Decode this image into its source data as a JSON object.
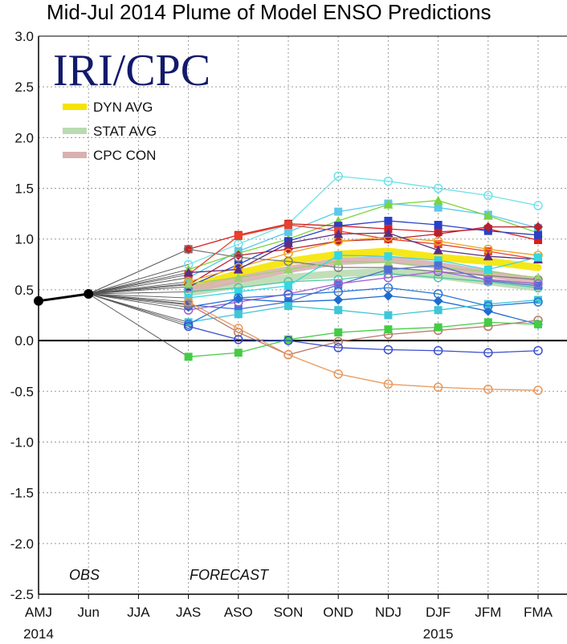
{
  "chart_data": {
    "type": "line",
    "title": "Mid-Jul 2014 Plume of Model ENSO Predictions",
    "brand": "IRI/CPC",
    "categories": [
      "AMJ",
      "Jun",
      "JJA",
      "JAS",
      "ASO",
      "SON",
      "OND",
      "NDJ",
      "DJF",
      "JFM",
      "FMA"
    ],
    "y_tick_labels": [
      "3.0",
      "2.5",
      "2.0",
      "1.5",
      "1.0",
      "0.5",
      "0.0",
      "-0.5",
      "-1.0",
      "-1.5",
      "-2.0",
      "-2.5"
    ],
    "ylim": [
      -2.5,
      3.0
    ],
    "grid": true,
    "legend_placement": "top-left",
    "period_labels": {
      "obs": "OBS",
      "forecast": "FORECAST"
    },
    "year_labels": [
      {
        "text": "2014",
        "category": "AMJ"
      },
      {
        "text": "2015",
        "category": "DJF"
      }
    ],
    "legend": [
      {
        "label": "DYN AVG",
        "color": "#f5e400"
      },
      {
        "label": "STAT AVG",
        "color": "#b9dbb1"
      },
      {
        "label": "CPC CON",
        "color": "#d8b1b1"
      }
    ],
    "observed": {
      "x": [
        "AMJ",
        "Jun"
      ],
      "values": [
        0.39,
        0.46
      ],
      "color": "#000000"
    },
    "averages": [
      {
        "name": "DYN AVG",
        "color": "#f5e400",
        "values": [
          0.52,
          0.66,
          0.78,
          0.85,
          0.88,
          0.82,
          0.78,
          0.72
        ]
      },
      {
        "name": "STAT AVG",
        "color": "#b9dbb1",
        "values": [
          0.47,
          0.55,
          0.62,
          0.66,
          0.68,
          0.64,
          0.58,
          0.52
        ]
      },
      {
        "name": "CPC CON",
        "color": "#d8b1b1",
        "values": [
          0.5,
          0.6,
          0.7,
          0.78,
          0.8,
          0.74,
          0.66,
          0.58
        ]
      }
    ],
    "forecast_x": [
      "JAS",
      "ASO",
      "SON",
      "OND",
      "NDJ",
      "DJF",
      "JFM",
      "FMA"
    ],
    "models": [
      {
        "color": "#6ee3e8",
        "marker": "circle",
        "values": [
          0.75,
          0.95,
          1.15,
          1.62,
          1.57,
          1.5,
          1.43,
          1.33
        ]
      },
      {
        "color": "#5bc8ec",
        "marker": "square",
        "values": [
          0.62,
          0.88,
          1.07,
          1.27,
          1.35,
          1.31,
          1.24,
          1.11
        ]
      },
      {
        "color": "#7ad43c",
        "marker": "triangle",
        "values": [
          0.7,
          0.86,
          1.0,
          1.18,
          1.34,
          1.38,
          1.23,
          1.06
        ]
      },
      {
        "color": "#d91d1d",
        "marker": "square",
        "values": [
          0.9,
          1.04,
          1.15,
          1.13,
          1.1,
          1.07,
          1.1,
          0.99
        ]
      },
      {
        "color": "#2a3fc9",
        "marker": "square",
        "values": [
          0.53,
          0.75,
          0.98,
          1.13,
          1.18,
          1.14,
          1.08,
          1.04
        ]
      },
      {
        "color": "#e8412a",
        "marker": "square",
        "values": [
          0.65,
          1.03,
          1.14,
          1.08,
          1.0,
          0.95,
          0.88,
          0.8
        ]
      },
      {
        "color": "#b8202f",
        "marker": "diamond",
        "values": [
          0.55,
          0.84,
          0.9,
          0.98,
          1.0,
          1.05,
          1.12,
          1.12
        ]
      },
      {
        "color": "#f0a11c",
        "marker": "circle",
        "values": [
          0.58,
          0.72,
          0.86,
          0.98,
          1.02,
          0.98,
          0.9,
          0.84
        ]
      },
      {
        "color": "#5b2d82",
        "marker": "triangle",
        "values": [
          0.67,
          0.7,
          0.96,
          1.05,
          1.06,
          0.89,
          0.83,
          0.8
        ]
      },
      {
        "color": "#7b7b7b",
        "marker": "circle",
        "values": [
          0.9,
          0.82,
          0.78,
          0.72,
          0.72,
          0.68,
          0.64,
          0.6
        ]
      },
      {
        "color": "#98d26b",
        "marker": "triangle",
        "values": [
          0.56,
          0.62,
          0.7,
          0.78,
          0.77,
          0.72,
          0.68,
          0.62
        ]
      },
      {
        "color": "#4ec6a4",
        "marker": "circle",
        "values": [
          0.48,
          0.52,
          0.58,
          0.6,
          0.66,
          0.62,
          0.58,
          0.52
        ]
      },
      {
        "color": "#36d6e2",
        "marker": "square",
        "values": [
          0.42,
          0.48,
          0.54,
          0.84,
          0.83,
          0.79,
          0.7,
          0.82
        ]
      },
      {
        "color": "#4f6fd6",
        "marker": "square",
        "values": [
          0.35,
          0.31,
          0.38,
          0.55,
          0.7,
          0.74,
          0.59,
          0.54
        ]
      },
      {
        "color": "#a35fd2",
        "marker": "circle",
        "values": [
          0.3,
          0.38,
          0.46,
          0.56,
          0.62,
          0.68,
          0.6,
          0.56
        ]
      },
      {
        "color": "#1e6bd0",
        "marker": "diamond",
        "values": [
          0.33,
          0.41,
          0.38,
          0.4,
          0.44,
          0.39,
          0.29,
          0.16
        ]
      },
      {
        "color": "#3ec6d8",
        "marker": "square",
        "values": [
          0.18,
          0.26,
          0.34,
          0.3,
          0.25,
          0.3,
          0.36,
          0.4
        ]
      },
      {
        "color": "#2a76d4",
        "marker": "circle",
        "values": [
          0.16,
          0.42,
          0.45,
          0.48,
          0.52,
          0.46,
          0.34,
          0.38
        ]
      },
      {
        "color": "#b77b6d",
        "marker": "circle",
        "values": [
          0.36,
          0.08,
          -0.14,
          -0.01,
          0.06,
          0.1,
          0.14,
          0.2
        ]
      },
      {
        "color": "#44cc44",
        "marker": "square",
        "values": [
          -0.16,
          -0.12,
          0.01,
          0.08,
          0.11,
          0.13,
          0.18,
          0.16
        ]
      },
      {
        "color": "#3a4fd0",
        "marker": "circle",
        "values": [
          0.14,
          0.01,
          0.0,
          -0.07,
          -0.09,
          -0.1,
          -0.12,
          -0.1
        ]
      },
      {
        "color": "#e8985c",
        "marker": "circle",
        "values": [
          0.38,
          0.12,
          -0.14,
          -0.33,
          -0.43,
          -0.46,
          -0.48,
          -0.49
        ]
      }
    ]
  }
}
